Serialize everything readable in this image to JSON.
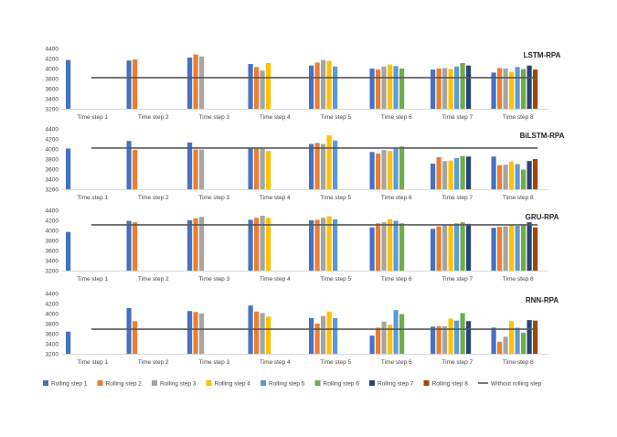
{
  "chart_data": {
    "type": "bar",
    "categories": [
      "Time step 1",
      "Time step 2",
      "Time step 3",
      "Time step 4",
      "Time step 5",
      "Time step 6",
      "Time step 7",
      "Time step 8"
    ],
    "ylim": [
      3200,
      4400
    ],
    "yticks": [
      3200,
      3400,
      3600,
      3800,
      4000,
      4200,
      4400
    ],
    "legend_position": "bottom",
    "colors": [
      "#4472C4",
      "#ED7D31",
      "#A5A5A5",
      "#FFC000",
      "#5B9BD5",
      "#70AD47",
      "#264478",
      "#9E480E"
    ],
    "baseline_color": "#595959",
    "series_names": [
      "Rolling step 1",
      "Rolling step 2",
      "Rolling step 3",
      "Rolling step 4",
      "Rolling step 5",
      "Rolling step 6",
      "Rolling step 7",
      "Rolling step 8"
    ],
    "baseline_name": "Without rolling step",
    "panels": [
      {
        "title": "LSTM-RPA",
        "baseline": 3820,
        "groups": [
          [
            4170
          ],
          [
            4160,
            4180
          ],
          [
            4220,
            4280,
            4240
          ],
          [
            4090,
            4030,
            3960,
            4110
          ],
          [
            4060,
            4120,
            4170,
            4150,
            4040
          ],
          [
            4000,
            3980,
            4040,
            4080,
            4050,
            4000
          ],
          [
            3980,
            4000,
            4010,
            3990,
            4040,
            4110,
            4060
          ],
          [
            3920,
            4010,
            4000,
            3930,
            4030,
            3990,
            4060,
            3980
          ]
        ]
      },
      {
        "title": "BiLSTM-RPA",
        "baseline": 4020,
        "groups": [
          [
            4010
          ],
          [
            4160,
            3980
          ],
          [
            4130,
            3990,
            3990
          ],
          [
            4010,
            4020,
            4010,
            3960
          ],
          [
            4100,
            4120,
            4100,
            4270,
            4170
          ],
          [
            3940,
            3910,
            3980,
            3960,
            4020,
            4050
          ],
          [
            3710,
            3840,
            3760,
            3770,
            3820,
            3860,
            3850
          ],
          [
            3850,
            3680,
            3690,
            3750,
            3700,
            3590,
            3760,
            3800
          ]
        ]
      },
      {
        "title": "GRU-RPA",
        "baseline": 4110,
        "groups": [
          [
            3970
          ],
          [
            4190,
            4160
          ],
          [
            4200,
            4240,
            4270
          ],
          [
            4210,
            4250,
            4290,
            4250
          ],
          [
            4200,
            4210,
            4250,
            4280,
            4220
          ],
          [
            4060,
            4140,
            4160,
            4220,
            4190,
            4140
          ],
          [
            4030,
            4080,
            4120,
            4110,
            4140,
            4160,
            4130
          ],
          [
            4050,
            4070,
            4080,
            4120,
            4090,
            4120,
            4160,
            4060
          ]
        ]
      },
      {
        "title": "RNN-RPA",
        "baseline": 3690,
        "groups": [
          [
            3640
          ],
          [
            4110,
            3850
          ],
          [
            4050,
            4030,
            4000
          ],
          [
            4160,
            4040,
            4010,
            3940
          ],
          [
            3910,
            3800,
            3950,
            4040,
            3910
          ],
          [
            3560,
            3720,
            3840,
            3780,
            4070,
            3990
          ],
          [
            3740,
            3750,
            3750,
            3900,
            3860,
            4010,
            3850
          ],
          [
            3720,
            3440,
            3540,
            3850,
            3720,
            3620,
            3870,
            3860
          ]
        ]
      }
    ]
  }
}
